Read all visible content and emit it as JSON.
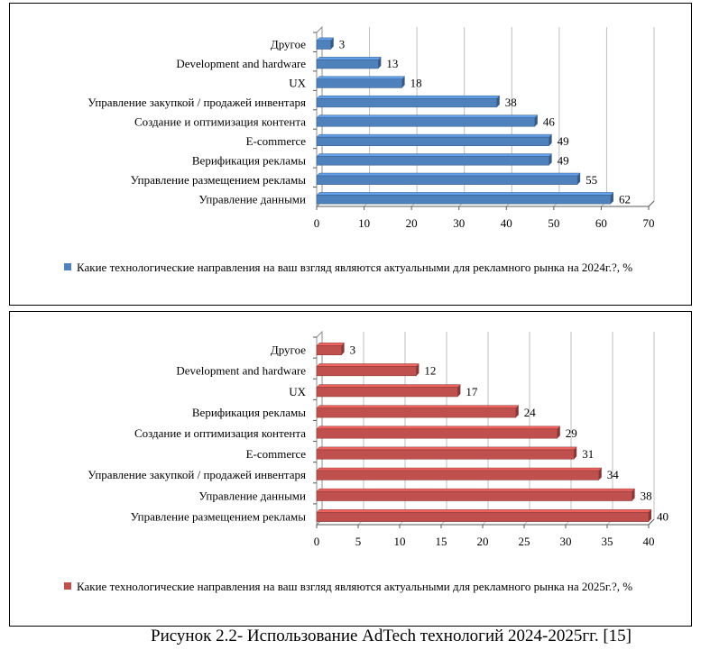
{
  "chart_data": [
    {
      "type": "bar",
      "orientation": "horizontal",
      "categories": [
        "Другое",
        "Development and hardware",
        "UX",
        "Управление закупкой / продажей инвентаря",
        "Создание и оптимизация контента",
        "E-commerce",
        "Верификация рекламы",
        "Управление размещением рекламы",
        "Управление данными"
      ],
      "values": [
        3,
        13,
        18,
        38,
        46,
        49,
        49,
        55,
        62
      ],
      "xlim": [
        0,
        70
      ],
      "xticks": [
        "0",
        "10",
        "20",
        "30",
        "40",
        "50",
        "60",
        "70"
      ],
      "grid": true,
      "color": "#4f81bd",
      "legend": "Какие технологические направления на ваш взгляд являются актуальными для рекламного рынка на 2024г.?, %"
    },
    {
      "type": "bar",
      "orientation": "horizontal",
      "categories": [
        "Другое",
        "Development and hardware",
        "UX",
        "Верификация рекламы",
        "Создание и оптимизация контента",
        "E-commerce",
        "Управление закупкой / продажей инвентаря",
        "Управление данными",
        "Управление размещением рекламы"
      ],
      "values": [
        3,
        12,
        17,
        24,
        29,
        31,
        34,
        38,
        40
      ],
      "xlim": [
        0,
        40
      ],
      "xticks": [
        "0",
        "5",
        "10",
        "15",
        "20",
        "25",
        "30",
        "35",
        "40"
      ],
      "grid": true,
      "color": "#c0504d",
      "legend": "Какие технологические направления на ваш взгляд являются актуальными для рекламного рынка на 2025г.?, %"
    }
  ],
  "caption": "Рисунок 2.2- Использование AdTech технологий 2024-2025гг. [15]"
}
